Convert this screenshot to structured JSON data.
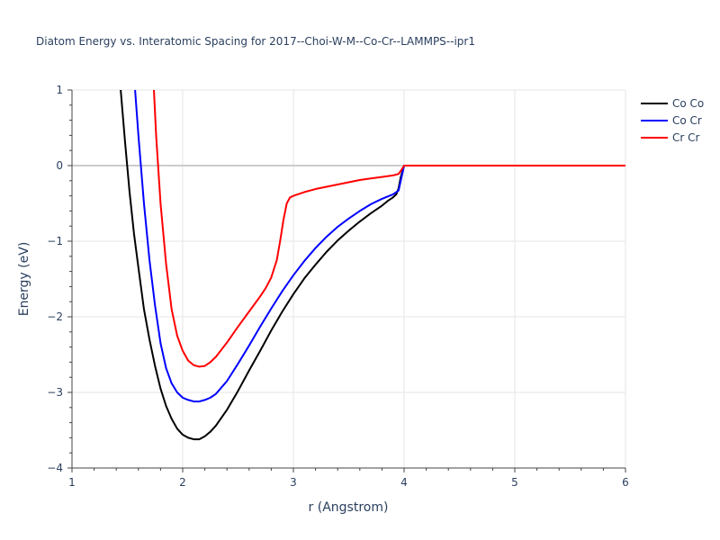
{
  "chart_data": {
    "type": "line",
    "title": "Diatom Energy vs. Interatomic Spacing for 2017--Choi-W-M--Co-Cr--LAMMPS--ipr1",
    "xlabel": "r (Angstrom)",
    "ylabel": "Energy (eV)",
    "xlim": [
      1,
      6
    ],
    "ylim": [
      -4,
      1
    ],
    "xticks": [
      1,
      2,
      3,
      4,
      5,
      6
    ],
    "yticks": [
      -4,
      -3,
      -2,
      -1,
      0,
      1
    ],
    "grid": true,
    "legend_position": "top-right",
    "series": [
      {
        "name": "Co Co",
        "color": "#000000",
        "x": [
          1.44,
          1.48,
          1.52,
          1.56,
          1.6,
          1.65,
          1.7,
          1.75,
          1.8,
          1.85,
          1.9,
          1.95,
          2.0,
          2.05,
          2.1,
          2.15,
          2.2,
          2.25,
          2.3,
          2.4,
          2.5,
          2.6,
          2.7,
          2.8,
          2.9,
          3.0,
          3.1,
          3.2,
          3.3,
          3.4,
          3.5,
          3.6,
          3.7,
          3.8,
          3.85,
          3.9,
          3.93,
          3.95,
          3.97,
          4.0,
          4.5,
          5.0,
          5.5,
          6.0
        ],
        "y": [
          1.0,
          0.3,
          -0.35,
          -0.9,
          -1.35,
          -1.9,
          -2.3,
          -2.65,
          -2.95,
          -3.18,
          -3.35,
          -3.48,
          -3.56,
          -3.6,
          -3.62,
          -3.62,
          -3.58,
          -3.52,
          -3.44,
          -3.23,
          -2.98,
          -2.71,
          -2.45,
          -2.18,
          -1.93,
          -1.7,
          -1.49,
          -1.31,
          -1.14,
          -0.99,
          -0.86,
          -0.74,
          -0.63,
          -0.53,
          -0.47,
          -0.42,
          -0.38,
          -0.3,
          -0.15,
          0.0,
          0.0,
          0.0,
          0.0,
          0.0
        ]
      },
      {
        "name": "Co Cr",
        "color": "#0000ff",
        "x": [
          1.57,
          1.6,
          1.65,
          1.7,
          1.75,
          1.8,
          1.85,
          1.9,
          1.95,
          2.0,
          2.05,
          2.1,
          2.15,
          2.2,
          2.25,
          2.3,
          2.4,
          2.5,
          2.6,
          2.7,
          2.8,
          2.9,
          3.0,
          3.1,
          3.2,
          3.3,
          3.4,
          3.5,
          3.6,
          3.7,
          3.8,
          3.9,
          3.95,
          3.97,
          4.0,
          4.5,
          5.0,
          5.5,
          6.0
        ],
        "y": [
          1.0,
          0.4,
          -0.5,
          -1.25,
          -1.85,
          -2.35,
          -2.68,
          -2.88,
          -3.0,
          -3.07,
          -3.1,
          -3.12,
          -3.12,
          -3.1,
          -3.07,
          -3.02,
          -2.85,
          -2.62,
          -2.38,
          -2.13,
          -1.89,
          -1.66,
          -1.45,
          -1.26,
          -1.09,
          -0.94,
          -0.81,
          -0.7,
          -0.6,
          -0.51,
          -0.44,
          -0.38,
          -0.33,
          -0.2,
          0.0,
          0.0,
          0.0,
          0.0,
          0.0
        ]
      },
      {
        "name": "Cr Cr",
        "color": "#ff0000",
        "x": [
          1.74,
          1.76,
          1.8,
          1.85,
          1.9,
          1.95,
          2.0,
          2.05,
          2.1,
          2.15,
          2.2,
          2.25,
          2.3,
          2.4,
          2.5,
          2.6,
          2.7,
          2.75,
          2.8,
          2.85,
          2.88,
          2.91,
          2.94,
          2.97,
          3.0,
          3.1,
          3.2,
          3.3,
          3.4,
          3.5,
          3.6,
          3.7,
          3.8,
          3.9,
          3.95,
          3.97,
          4.0,
          4.5,
          5.0,
          5.5,
          6.0
        ],
        "y": [
          1.0,
          0.4,
          -0.5,
          -1.3,
          -1.9,
          -2.25,
          -2.45,
          -2.58,
          -2.64,
          -2.66,
          -2.65,
          -2.6,
          -2.53,
          -2.34,
          -2.13,
          -1.93,
          -1.73,
          -1.62,
          -1.48,
          -1.25,
          -1.0,
          -0.72,
          -0.5,
          -0.42,
          -0.4,
          -0.35,
          -0.31,
          -0.28,
          -0.25,
          -0.22,
          -0.19,
          -0.17,
          -0.15,
          -0.13,
          -0.11,
          -0.07,
          0.0,
          0.0,
          0.0,
          0.0,
          0.0
        ]
      }
    ]
  }
}
